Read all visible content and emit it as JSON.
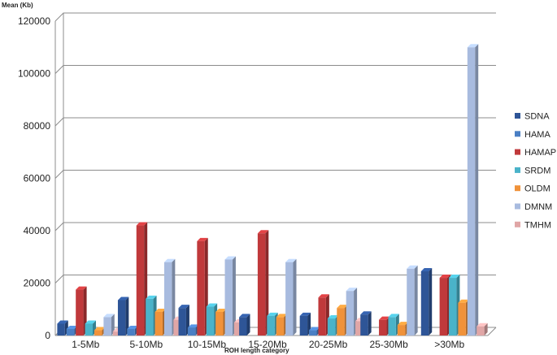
{
  "chart_data": {
    "type": "bar",
    "ylabel": "Mean (Kb)",
    "xlabel": "ROH length category",
    "ylim": [
      0,
      120000
    ],
    "yticks": [
      0,
      20000,
      40000,
      60000,
      80000,
      100000,
      120000
    ],
    "grid": true,
    "legend_position": "right",
    "categories": [
      "1-5Mb",
      "5-10Mb",
      "10-15Mb",
      "15-20Mb",
      "20-25Mb",
      "25-30Mb",
      ">30Mb"
    ],
    "series": [
      {
        "name": "SDNA",
        "color": "#2e5597",
        "values": [
          4500,
          13500,
          10500,
          7000,
          7500,
          8000,
          24500
        ]
      },
      {
        "name": "HAMA",
        "color": "#4a7fc4",
        "values": [
          2500,
          2500,
          3000,
          0,
          2000,
          0,
          0
        ]
      },
      {
        "name": "HAMAP",
        "color": "#c0393b",
        "values": [
          17500,
          42000,
          36000,
          39000,
          14500,
          6000,
          22000
        ]
      },
      {
        "name": "SRDM",
        "color": "#4ab3c9",
        "values": [
          4500,
          14000,
          11000,
          7500,
          6500,
          7000,
          22000
        ]
      },
      {
        "name": "OLDM",
        "color": "#f0923a",
        "values": [
          2000,
          9000,
          9000,
          7000,
          10500,
          4000,
          12500
        ]
      },
      {
        "name": "DMNM",
        "color": "#a8bbdf",
        "values": [
          7000,
          28000,
          29000,
          28000,
          17000,
          25500,
          110000
        ]
      },
      {
        "name": "TMHM",
        "color": "#e0a6a6",
        "values": [
          1500,
          6000,
          5000,
          0,
          5500,
          0,
          3500
        ]
      }
    ]
  }
}
